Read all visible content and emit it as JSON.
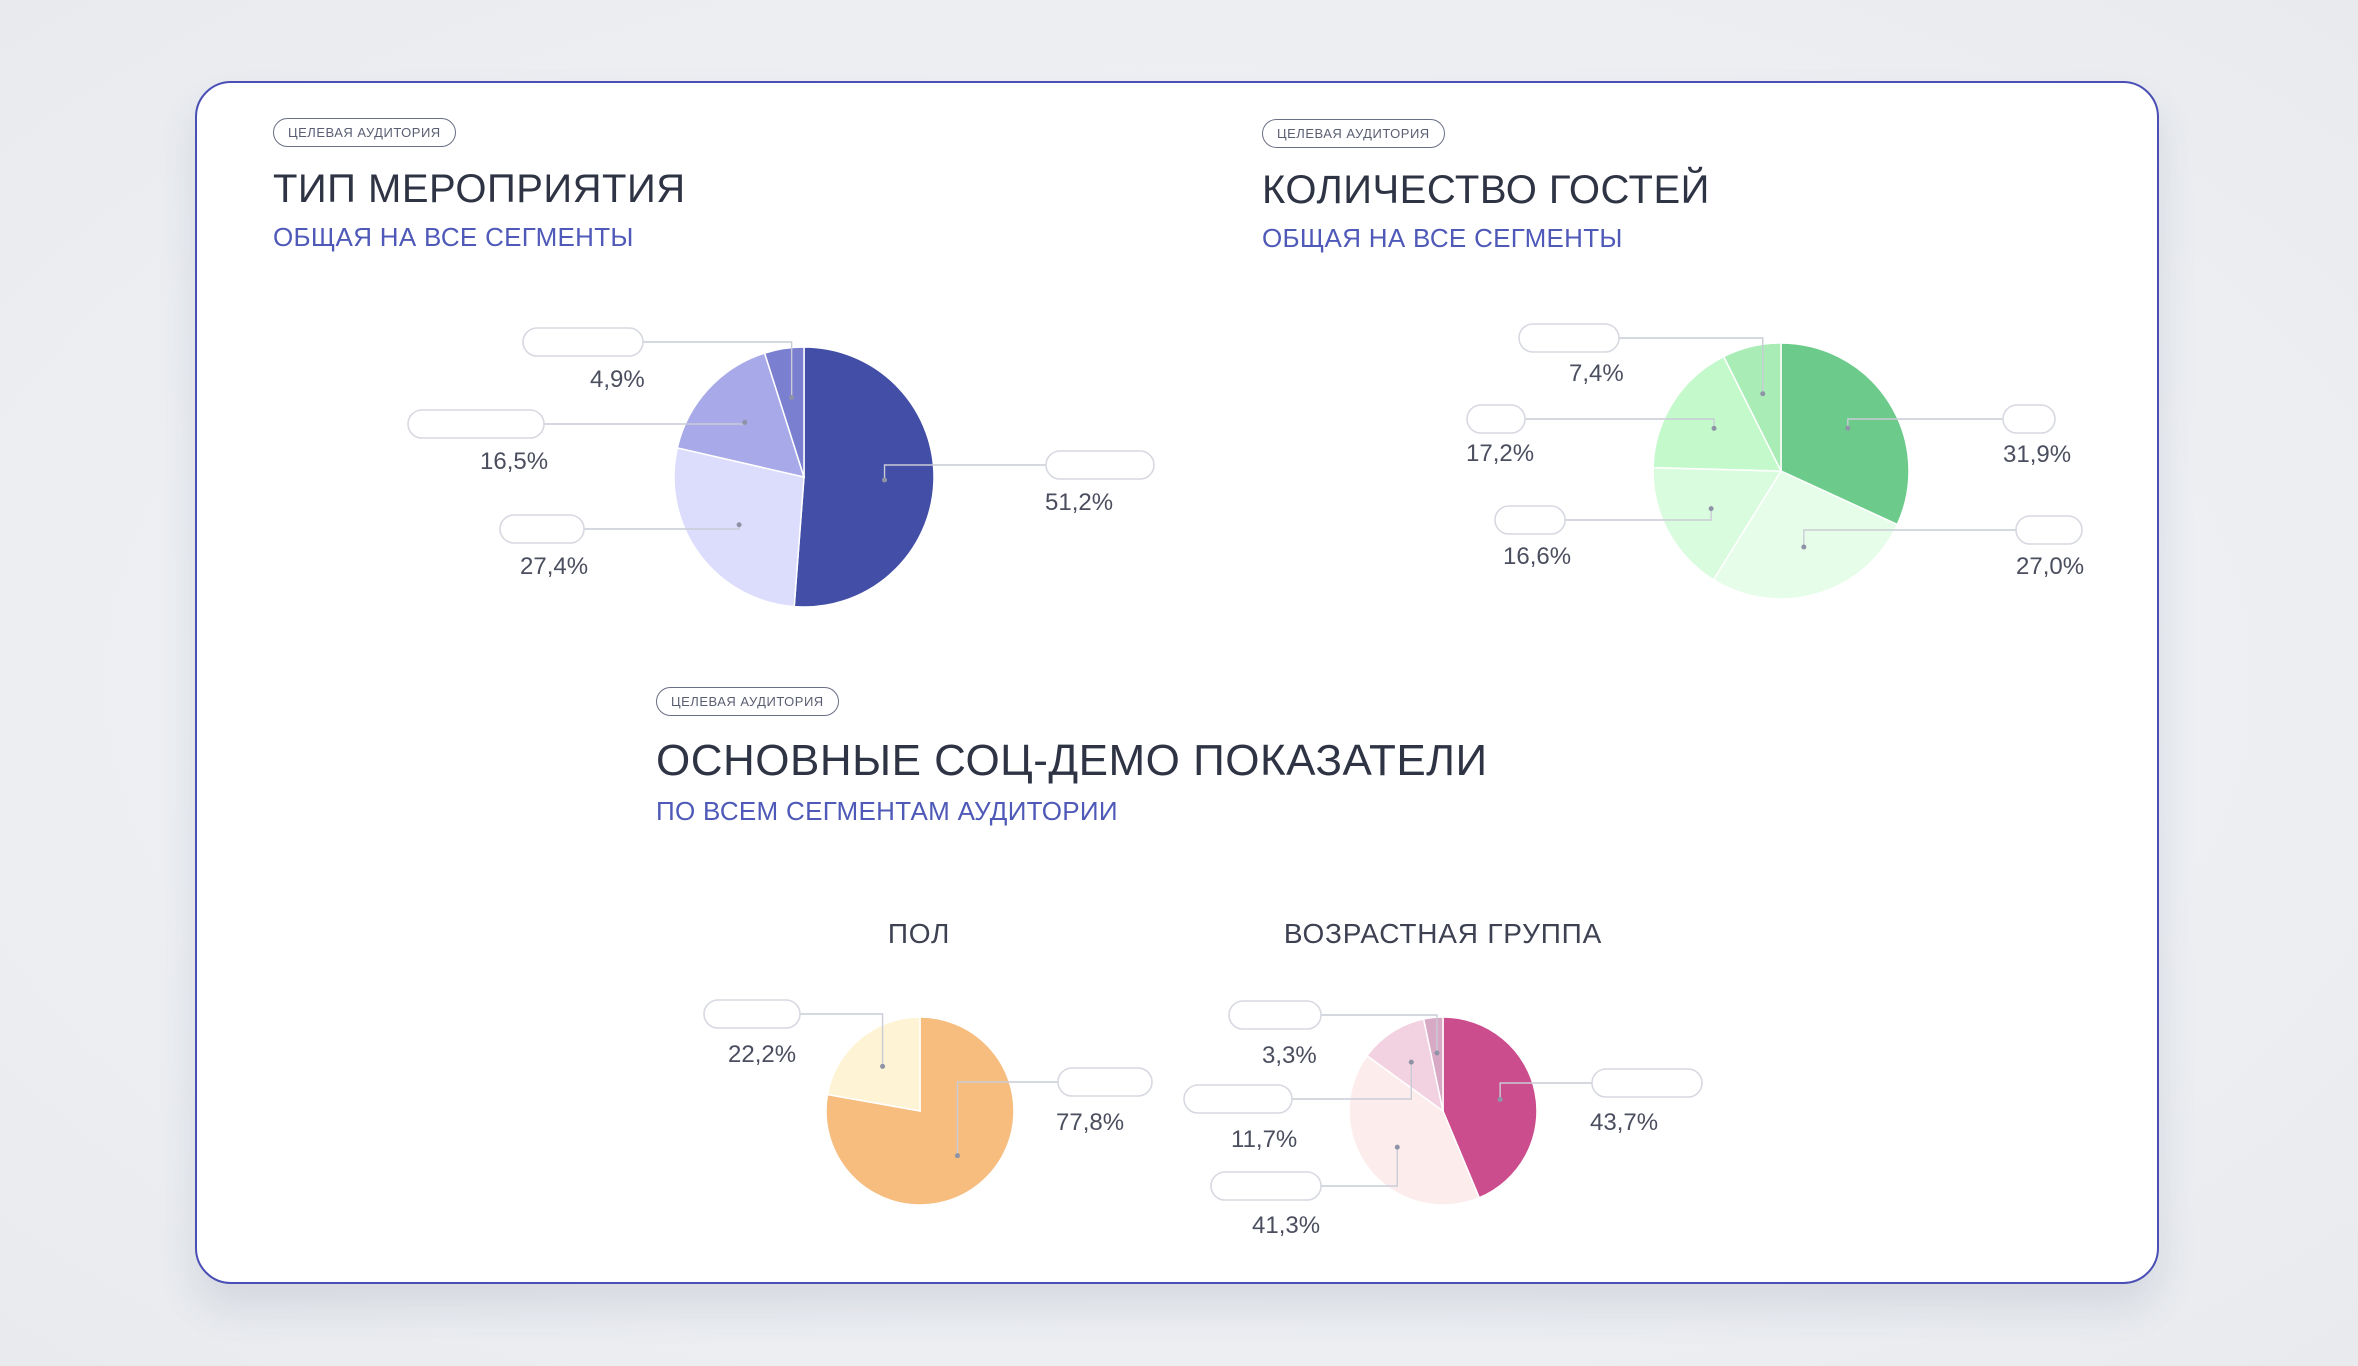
{
  "sections": {
    "event_type": {
      "badge": "ЦЕЛЕВАЯ АУДИТОРИЯ",
      "title": "ТИП МЕРОПРИЯТИЯ",
      "subtitle": "ОБЩАЯ НА ВСЕ СЕГМЕНТЫ"
    },
    "guest_count": {
      "badge": "ЦЕЛЕВАЯ АУДИТОРИЯ",
      "title": "КОЛИЧЕСТВО ГОСТЕЙ",
      "subtitle": "ОБЩАЯ НА ВСЕ СЕГМЕНТЫ"
    },
    "socdemo": {
      "badge": "ЦЕЛЕВАЯ АУДИТОРИЯ",
      "title": "ОСНОВНЫЕ СОЦ-ДЕМО ПОКАЗАТЕЛИ",
      "subtitle": "ПО ВСЕМ СЕГМЕНТАМ АУДИТОРИИ",
      "gender_heading": "ПОЛ",
      "age_heading": "ВОЗРАСТНАЯ ГРУППА"
    }
  },
  "chart_data": [
    {
      "type": "pie",
      "title": "ТИП МЕРОПРИЯТИЯ",
      "slices": [
        {
          "label": "51,2%",
          "value": 51.2,
          "color": "#434ea6"
        },
        {
          "label": "27,4%",
          "value": 27.4,
          "color": "#dcdcfc"
        },
        {
          "label": "16,5%",
          "value": 16.5,
          "color": "#a8a9e8"
        },
        {
          "label": "4,9%",
          "value": 4.9,
          "color": "#7b7fd0"
        }
      ]
    },
    {
      "type": "pie",
      "title": "КОЛИЧЕСТВО ГОСТЕЙ",
      "slices": [
        {
          "label": "31,9%",
          "value": 31.9,
          "color": "#6ccb8b"
        },
        {
          "label": "27,0%",
          "value": 27.0,
          "color": "#e6fde9"
        },
        {
          "label": "16,6%",
          "value": 16.6,
          "color": "#dafcde"
        },
        {
          "label": "17,2%",
          "value": 17.2,
          "color": "#c4f9cc"
        },
        {
          "label": "7,4%",
          "value": 7.4,
          "color": "#a9ecb6"
        }
      ]
    },
    {
      "type": "pie",
      "title": "ПОЛ",
      "slices": [
        {
          "label": "77,8%",
          "value": 77.8,
          "color": "#f6bd7f"
        },
        {
          "label": "22,2%",
          "value": 22.2,
          "color": "#fef3d5"
        }
      ]
    },
    {
      "type": "pie",
      "title": "ВОЗРАСТНАЯ ГРУППА",
      "slices": [
        {
          "label": "43,7%",
          "value": 43.7,
          "color": "#cc4d8e"
        },
        {
          "label": "41,3%",
          "value": 41.3,
          "color": "#fdecec"
        },
        {
          "label": "11,7%",
          "value": 11.7,
          "color": "#f2d2e0"
        },
        {
          "label": "3,3%",
          "value": 3.3,
          "color": "#d8a9c4"
        }
      ]
    }
  ]
}
